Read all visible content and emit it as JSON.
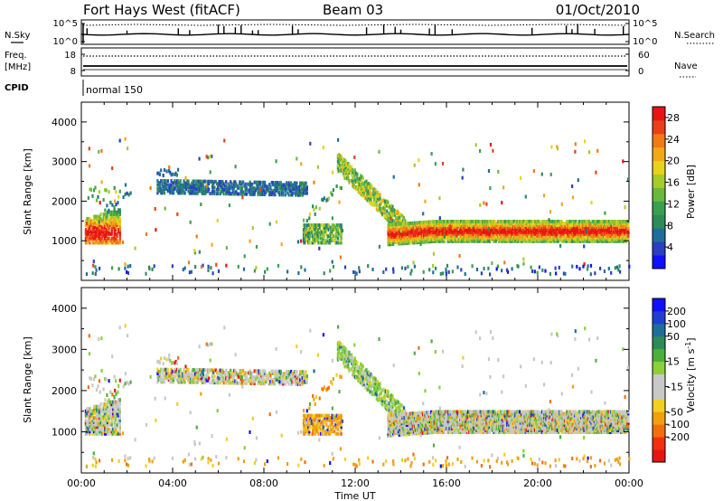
{
  "header": {
    "station": "Fort Hays West (fitACF)",
    "beam": "Beam 03",
    "date": "01/Oct/2010"
  },
  "summary_panels": {
    "nsky": {
      "label": "N.Sky",
      "ticks": [
        "10^5",
        "10^0"
      ]
    },
    "nsearch": {
      "label": "N.Search",
      "ticks": [
        "10^5",
        "10^0"
      ]
    },
    "freq": {
      "label_line1": "Freq.",
      "label_line2": "[MHz]",
      "ticks": [
        "18",
        "8"
      ]
    },
    "nave": {
      "label": "Nave",
      "ticks": [
        "60",
        "0"
      ]
    },
    "cpid": {
      "label": "CPID",
      "mode": "normal 150"
    }
  },
  "chart_data": [
    {
      "type": "heatmap",
      "parameter": "Power",
      "ylabel": "Slant Range [km]",
      "xlabel": "Time UT",
      "xlim_hours": [
        0,
        24
      ],
      "ylim": [
        0,
        4500
      ],
      "x_ticks": [
        "00:00",
        "04:00",
        "08:00",
        "12:00",
        "16:00",
        "20:00",
        "00:00"
      ],
      "y_ticks": [
        1000,
        2000,
        3000,
        4000
      ],
      "colorbar": {
        "label": "Power [dB]",
        "ticks": [
          "4",
          "8",
          "12",
          "16",
          "20",
          "24",
          "28"
        ],
        "range": [
          0,
          30
        ],
        "colors": [
          "#1010ff",
          "#2a40c0",
          "#1f6e9a",
          "#2e8b57",
          "#3aa050",
          "#6ab840",
          "#a6cc2a",
          "#e8d21c",
          "#f3a818",
          "#f07a14",
          "#e8401a",
          "#e81414"
        ]
      },
      "regions": [
        {
          "t_hours": [
            0.2,
            1.7
          ],
          "range_km": [
            1000,
            1500
          ],
          "value": "high"
        },
        {
          "t_hours": [
            3.4,
            9.8
          ],
          "range_km": [
            2200,
            2600
          ],
          "value": "low"
        },
        {
          "t_hours": [
            9.8,
            11.3
          ],
          "range_km": [
            1000,
            1400
          ],
          "value": "mid"
        },
        {
          "t_hours": [
            11.0,
            14.0
          ],
          "range_km": [
            1300,
            3000
          ],
          "value": "mid"
        },
        {
          "t_hours": [
            13.5,
            24.0
          ],
          "range_km": [
            1000,
            1500
          ],
          "value": "high"
        }
      ]
    },
    {
      "type": "heatmap",
      "parameter": "Velocity",
      "ylabel": "Slant Range [km]",
      "xlabel": "Time UT",
      "xlim_hours": [
        0,
        24
      ],
      "ylim": [
        0,
        4500
      ],
      "x_ticks": [
        "00:00",
        "04:00",
        "08:00",
        "12:00",
        "16:00",
        "20:00",
        "00:00"
      ],
      "y_ticks": [
        1000,
        2000,
        3000,
        4000
      ],
      "colorbar": {
        "label_prefix": "Velocity",
        "label_unit_main": "m s",
        "label_unit_exp": "-1",
        "ticks": [
          "200",
          "100",
          "50",
          "15",
          "-15",
          "-50",
          "-100",
          "-200"
        ],
        "colors": [
          "#1010ff",
          "#1f3fd0",
          "#1f6e9a",
          "#2e8b57",
          "#4caf3c",
          "#8ccf3a",
          "#c8c8c8",
          "#c8c8c8",
          "#f0d020",
          "#f0a010",
          "#f07010",
          "#f03010",
          "#e81414"
        ]
      }
    }
  ]
}
